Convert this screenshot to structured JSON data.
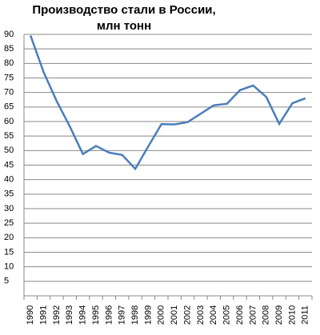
{
  "chart_data": {
    "type": "line",
    "title": [
      "Производство стали в России,",
      "млн тонн"
    ],
    "categories": [
      "1990",
      "1991",
      "1992",
      "1993",
      "1994",
      "1995",
      "1996",
      "1997",
      "1998",
      "1999",
      "2000",
      "2001",
      "2002",
      "2003",
      "2004",
      "2005",
      "2006",
      "2007",
      "2008",
      "2009",
      "2010",
      "2011"
    ],
    "values": [
      89.6,
      77,
      67,
      58.3,
      48.8,
      51.6,
      49.3,
      48.5,
      43.7,
      51.5,
      59.1,
      59.0,
      59.8,
      62.7,
      65.6,
      66.1,
      70.8,
      72.4,
      68.5,
      59.2,
      66.3,
      68.0
    ],
    "color": "#4a7ebb",
    "ylim": [
      0,
      90
    ],
    "yticks": [
      5,
      10,
      15,
      20,
      25,
      30,
      35,
      40,
      45,
      50,
      55,
      60,
      65,
      70,
      75,
      80,
      85,
      90
    ],
    "grid": true
  }
}
